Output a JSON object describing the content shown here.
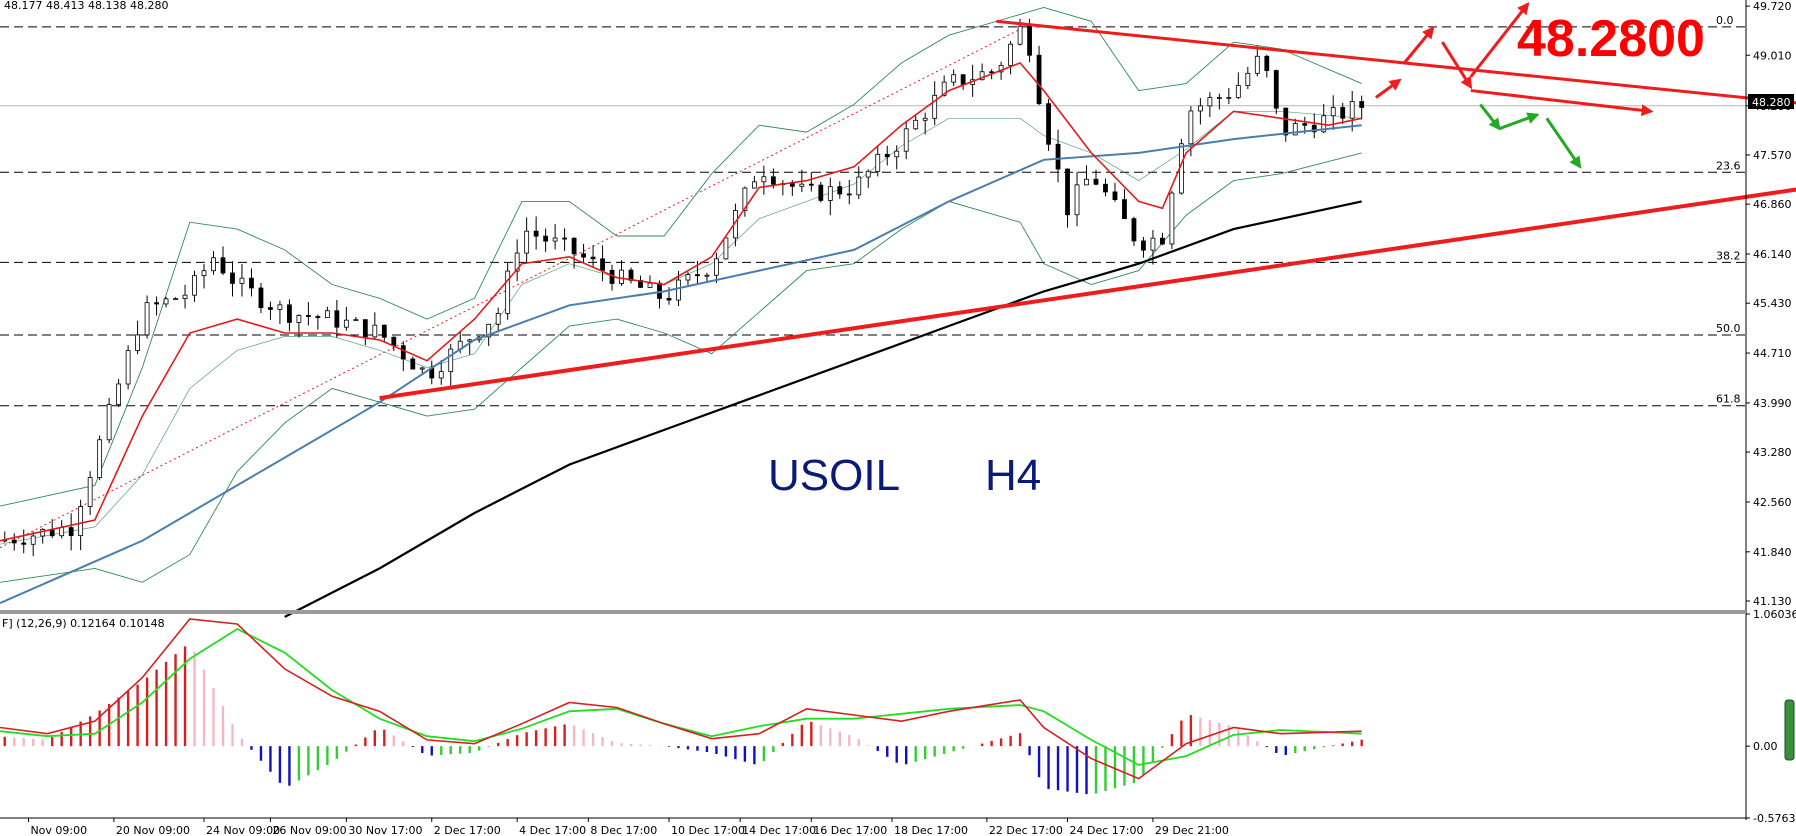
{
  "header": {
    "ohlc": "48.177 48.413 48.138 48.280",
    "macd_label": "F] (12,26,9) 0.12164 0.10148"
  },
  "labels": {
    "symbol": "USOIL",
    "timeframe": "H4",
    "target_price": "48.2800",
    "current_price": "48.280"
  },
  "colors": {
    "price_up": "#000000",
    "ema_fast": "#e41a1a",
    "ma_mid": "#4a7eb0",
    "ma_slow": "#000000",
    "bollinger": "#2e8b57",
    "trend": "#ee1c1c",
    "arrow_up": "#ee1c1c",
    "arrow_down": "#22aa22",
    "macd_line": "#d42020",
    "signal_line": "#22dd22",
    "hist_pos": "#d42020",
    "hist_pos_fade": "#f5b7c8",
    "hist_neg": "#1010c0",
    "hist_neg_fade": "#33cc33"
  },
  "chart_data": [
    {
      "type": "candlestick",
      "title": "USOIL H4",
      "y_ticks": [
        "49.720",
        "49.010",
        "48.280",
        "47.570",
        "46.860",
        "46.140",
        "45.430",
        "44.710",
        "43.990",
        "43.280",
        "42.560",
        "41.840",
        "41.130"
      ],
      "ylim": [
        41.0,
        49.75
      ],
      "x_ticks": [
        "Nov 09:00",
        "20 Nov 09:00",
        "24 Nov 09:00",
        "26 Nov 09:00",
        "30 Nov 17:00",
        "2 Dec 17:00",
        "4 Dec 17:00",
        "8 Dec 17:00",
        "10 Dec 17:00",
        "14 Dec 17:00",
        "16 Dec 17:00",
        "18 Dec 17:00",
        "22 Dec 17:00",
        "24 Dec 17:00",
        "29 Dec 21:00"
      ],
      "fib_levels": [
        {
          "label": "0.0",
          "value": 49.42
        },
        {
          "label": "23.6",
          "value": 47.32
        },
        {
          "label": "38.2",
          "value": 46.02
        },
        {
          "label": "50.0",
          "value": 44.97
        },
        {
          "label": "61.8",
          "value": 43.95
        }
      ],
      "current_price": 48.28,
      "trendline_upper": [
        [
          21,
          49.5
        ],
        [
          39.6,
          48.2
        ]
      ],
      "trendline_lower": [
        [
          8,
          44.06
        ],
        [
          43.5,
          47.64
        ]
      ],
      "close_path": [
        [
          0,
          42.0
        ],
        [
          1.5,
          42.2
        ],
        [
          2,
          43.2
        ],
        [
          3,
          45.3
        ],
        [
          4,
          45.6
        ],
        [
          4.5,
          46.1
        ],
        [
          5,
          45.7
        ],
        [
          6,
          45.3
        ],
        [
          7,
          45.2
        ],
        [
          8,
          45.0
        ],
        [
          9,
          44.4
        ],
        [
          10,
          45.0
        ],
        [
          10.5,
          45.3
        ],
        [
          11,
          46.5
        ],
        [
          12,
          46.2
        ],
        [
          13,
          45.8
        ],
        [
          14,
          45.5
        ],
        [
          15,
          46.0
        ],
        [
          16,
          47.4
        ],
        [
          17,
          47.0
        ],
        [
          18,
          47.1
        ],
        [
          19,
          47.8
        ],
        [
          20,
          48.6
        ],
        [
          21,
          48.8
        ],
        [
          21.6,
          49.5
        ],
        [
          22,
          48.1
        ],
        [
          22.5,
          46.8
        ],
        [
          23,
          47.3
        ],
        [
          24,
          46.3
        ],
        [
          24.5,
          46.4
        ],
        [
          25,
          48.2
        ],
        [
          26,
          48.5
        ],
        [
          26.6,
          49.0
        ],
        [
          27,
          47.9
        ],
        [
          28,
          48.1
        ],
        [
          28.7,
          48.28
        ]
      ],
      "ema_fast": [
        [
          0,
          42.0
        ],
        [
          2,
          42.3
        ],
        [
          3,
          43.8
        ],
        [
          4,
          45.0
        ],
        [
          5,
          45.2
        ],
        [
          6,
          45.0
        ],
        [
          7,
          45.0
        ],
        [
          8,
          44.9
        ],
        [
          9,
          44.6
        ],
        [
          10,
          45.2
        ],
        [
          11,
          46.0
        ],
        [
          12,
          46.1
        ],
        [
          13,
          45.8
        ],
        [
          14,
          45.7
        ],
        [
          15,
          46.1
        ],
        [
          16,
          47.1
        ],
        [
          17,
          47.2
        ],
        [
          18,
          47.4
        ],
        [
          19,
          48.0
        ],
        [
          20,
          48.5
        ],
        [
          21.5,
          48.9
        ],
        [
          22,
          48.5
        ],
        [
          23,
          47.6
        ],
        [
          24,
          46.9
        ],
        [
          24.5,
          46.8
        ],
        [
          25,
          47.6
        ],
        [
          26,
          48.2
        ],
        [
          27,
          48.1
        ],
        [
          28,
          48.0
        ],
        [
          28.7,
          48.1
        ]
      ],
      "ma_mid": [
        [
          0,
          41.1
        ],
        [
          3,
          42.0
        ],
        [
          6,
          43.2
        ],
        [
          8,
          44.0
        ],
        [
          10,
          44.9
        ],
        [
          12,
          45.4
        ],
        [
          14,
          45.6
        ],
        [
          16,
          45.9
        ],
        [
          18,
          46.2
        ],
        [
          20,
          46.9
        ],
        [
          22,
          47.5
        ],
        [
          24,
          47.6
        ],
        [
          26,
          47.8
        ],
        [
          28.7,
          48.0
        ]
      ],
      "ma_slow": [
        [
          6,
          40.9
        ],
        [
          8,
          41.6
        ],
        [
          10,
          42.4
        ],
        [
          12,
          43.1
        ],
        [
          14,
          43.6
        ],
        [
          16,
          44.1
        ],
        [
          18,
          44.6
        ],
        [
          20,
          45.1
        ],
        [
          22,
          45.6
        ],
        [
          24,
          46.0
        ],
        [
          26,
          46.5
        ],
        [
          28.7,
          46.9
        ]
      ],
      "bollinger_upper": [
        [
          0,
          42.5
        ],
        [
          2,
          42.8
        ],
        [
          3,
          44.5
        ],
        [
          4,
          46.6
        ],
        [
          5,
          46.5
        ],
        [
          6,
          46.2
        ],
        [
          7,
          45.7
        ],
        [
          8,
          45.5
        ],
        [
          9,
          45.2
        ],
        [
          10,
          45.5
        ],
        [
          11,
          46.9
        ],
        [
          12,
          46.9
        ],
        [
          13,
          46.4
        ],
        [
          14,
          46.4
        ],
        [
          15,
          47.3
        ],
        [
          16,
          48.0
        ],
        [
          17,
          47.9
        ],
        [
          18,
          48.3
        ],
        [
          19,
          48.9
        ],
        [
          20,
          49.3
        ],
        [
          21.5,
          49.6
        ],
        [
          22,
          49.7
        ],
        [
          23,
          49.5
        ],
        [
          24,
          48.5
        ],
        [
          25,
          48.6
        ],
        [
          26,
          49.2
        ],
        [
          27,
          49.1
        ],
        [
          28.7,
          48.6
        ]
      ],
      "bollinger_lower": [
        [
          0,
          41.4
        ],
        [
          2,
          41.6
        ],
        [
          3,
          41.4
        ],
        [
          4,
          41.8
        ],
        [
          5,
          43.0
        ],
        [
          6,
          43.7
        ],
        [
          7,
          44.2
        ],
        [
          8,
          44.0
        ],
        [
          9,
          43.8
        ],
        [
          10,
          43.9
        ],
        [
          11,
          44.5
        ],
        [
          12,
          45.1
        ],
        [
          13,
          45.2
        ],
        [
          14,
          45.0
        ],
        [
          15,
          44.7
        ],
        [
          16,
          45.3
        ],
        [
          17,
          45.9
        ],
        [
          18,
          46.0
        ],
        [
          19,
          46.5
        ],
        [
          20,
          46.9
        ],
        [
          21.5,
          46.6
        ],
        [
          22,
          46.0
        ],
        [
          23,
          45.7
        ],
        [
          24,
          45.9
        ],
        [
          25,
          46.7
        ],
        [
          26,
          47.2
        ],
        [
          27,
          47.3
        ],
        [
          28.7,
          47.6
        ]
      ],
      "arrows_up": [
        [
          [
            29.0,
            48.4
          ],
          [
            29.5,
            48.65
          ]
        ],
        [
          [
            29.6,
            48.9
          ],
          [
            30.2,
            49.4
          ]
        ],
        [
          [
            30.4,
            49.2
          ],
          [
            31.0,
            48.55
          ]
        ],
        [
          [
            31.0,
            48.7
          ],
          [
            32.2,
            49.75
          ]
        ]
      ],
      "arrows_down": [
        [
          [
            31.2,
            48.3
          ],
          [
            31.6,
            47.95
          ]
        ],
        [
          [
            31.6,
            47.95
          ],
          [
            32.4,
            48.15
          ]
        ],
        [
          [
            32.6,
            48.1
          ],
          [
            33.3,
            47.4
          ]
        ]
      ],
      "arrow_long_upper": [
        [
          31.0,
          48.5
        ],
        [
          34.8,
          48.2
        ]
      ],
      "arrow_long_lower": [
        [
          31.5,
          47.3
        ],
        [
          36.6,
          47.62
        ]
      ]
    },
    {
      "type": "macd",
      "params": "12,26,9",
      "macd_value": 0.12164,
      "signal_value": 0.10148,
      "y_ticks": [
        "1.06036",
        "0.00",
        "-0.57637"
      ],
      "ylim": [
        -0.57637,
        1.06036
      ],
      "macd_line": [
        [
          0,
          0.15
        ],
        [
          1,
          0.1
        ],
        [
          2,
          0.2
        ],
        [
          3,
          0.55
        ],
        [
          4,
          1.02
        ],
        [
          5,
          0.98
        ],
        [
          6,
          0.62
        ],
        [
          7,
          0.4
        ],
        [
          8,
          0.28
        ],
        [
          9,
          0.05
        ],
        [
          10,
          0.02
        ],
        [
          11,
          0.18
        ],
        [
          12,
          0.35
        ],
        [
          13,
          0.31
        ],
        [
          14,
          0.18
        ],
        [
          15,
          0.06
        ],
        [
          16,
          0.1
        ],
        [
          17,
          0.3
        ],
        [
          18,
          0.25
        ],
        [
          19,
          0.2
        ],
        [
          20,
          0.28
        ],
        [
          21.5,
          0.37
        ],
        [
          22,
          0.15
        ],
        [
          23,
          -0.1
        ],
        [
          24,
          -0.26
        ],
        [
          25,
          0.02
        ],
        [
          26,
          0.15
        ],
        [
          27,
          0.1
        ],
        [
          28.7,
          0.12
        ]
      ],
      "signal_line": [
        [
          0,
          0.12
        ],
        [
          1,
          0.08
        ],
        [
          2,
          0.1
        ],
        [
          3,
          0.35
        ],
        [
          4,
          0.7
        ],
        [
          5,
          0.94
        ],
        [
          6,
          0.75
        ],
        [
          7,
          0.45
        ],
        [
          8,
          0.22
        ],
        [
          9,
          0.08
        ],
        [
          10,
          0.04
        ],
        [
          11,
          0.14
        ],
        [
          12,
          0.28
        ],
        [
          13,
          0.3
        ],
        [
          14,
          0.18
        ],
        [
          15,
          0.08
        ],
        [
          16,
          0.16
        ],
        [
          17,
          0.22
        ],
        [
          18,
          0.22
        ],
        [
          19,
          0.26
        ],
        [
          20,
          0.3
        ],
        [
          21.5,
          0.33
        ],
        [
          22,
          0.28
        ],
        [
          23,
          0.05
        ],
        [
          24,
          -0.15
        ],
        [
          25,
          -0.08
        ],
        [
          26,
          0.09
        ],
        [
          27,
          0.13
        ],
        [
          28.7,
          0.1
        ]
      ]
    }
  ]
}
